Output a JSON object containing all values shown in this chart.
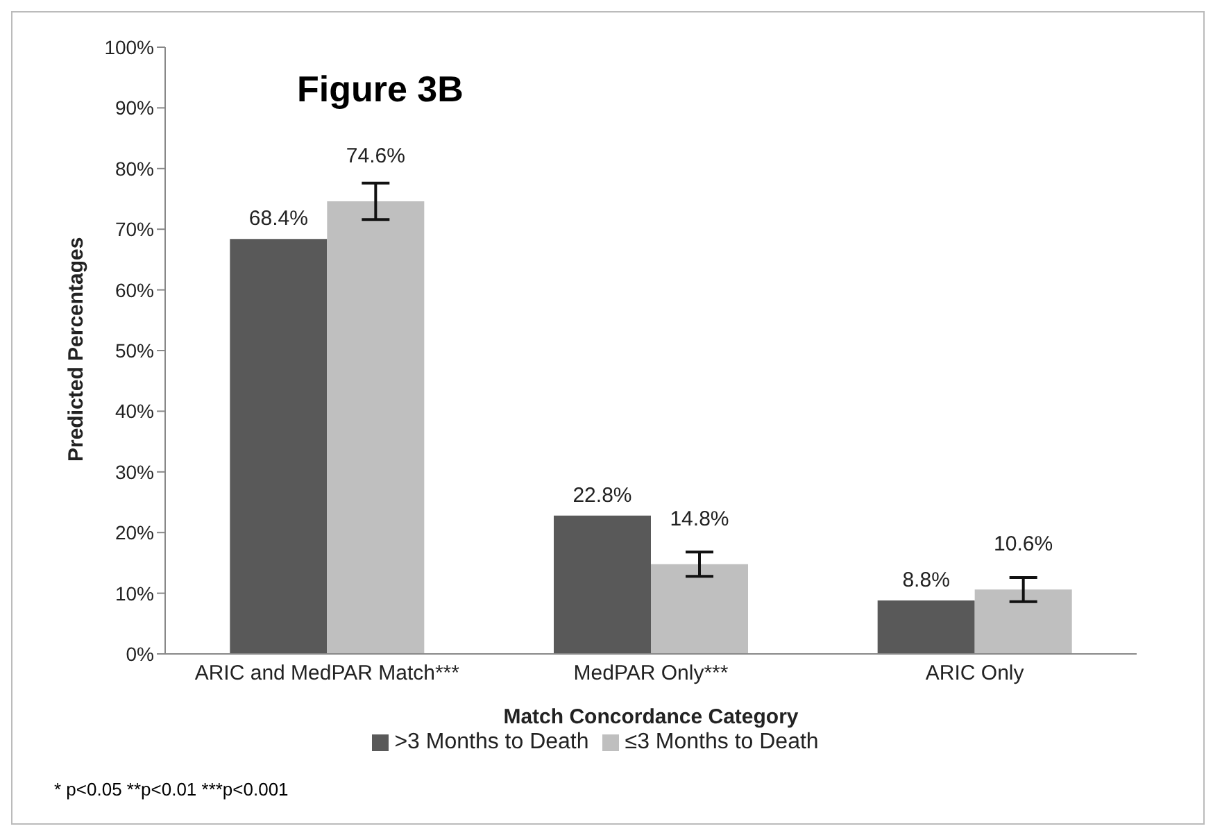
{
  "chart_data": {
    "type": "bar",
    "title": "Figure 3B",
    "xlabel": "Match Concordance Category",
    "ylabel": "Predicted Percentages",
    "categories": [
      "ARIC and MedPAR Match***",
      "MedPAR Only***",
      "ARIC Only"
    ],
    "series": [
      {
        "name": ">3 Months to Death",
        "color": "#595959",
        "values": [
          68.4,
          22.8,
          8.8
        ],
        "value_labels": [
          "68.4%",
          "22.8%",
          "8.8%"
        ]
      },
      {
        "name": "≤3 Months to Death",
        "color": "#bfbfbf",
        "values": [
          74.6,
          14.8,
          10.6
        ],
        "value_labels": [
          "74.6%",
          "14.8%",
          "10.6%"
        ],
        "errors": [
          [
            71.6,
            77.6
          ],
          [
            12.8,
            16.8
          ],
          [
            8.6,
            12.6
          ]
        ]
      }
    ],
    "ylim": [
      0,
      100
    ],
    "yticks": [
      {
        "value": 0,
        "label": "0%"
      },
      {
        "value": 10,
        "label": "10%"
      },
      {
        "value": 20,
        "label": "20%"
      },
      {
        "value": 30,
        "label": "30%"
      },
      {
        "value": 40,
        "label": "40%"
      },
      {
        "value": 50,
        "label": "50%"
      },
      {
        "value": 60,
        "label": "60%"
      },
      {
        "value": 70,
        "label": "70%"
      },
      {
        "value": 80,
        "label": "80%"
      },
      {
        "value": 90,
        "label": "90%"
      },
      {
        "value": 100,
        "label": "100%"
      }
    ],
    "grid": false,
    "legend": "bottom",
    "annotations": [
      "* p<0.05  **p<0.01  ***p<0.001"
    ]
  }
}
